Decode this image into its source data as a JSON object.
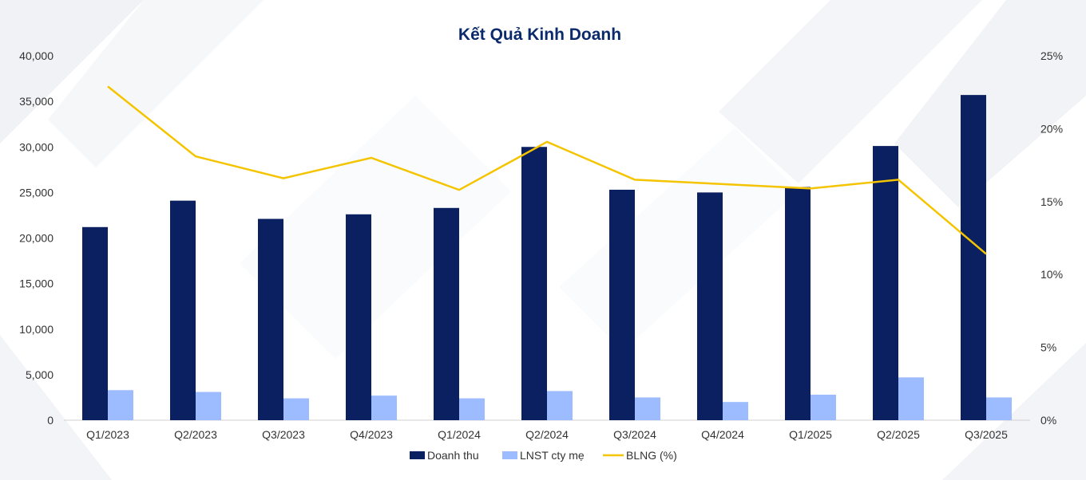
{
  "chart_data": {
    "type": "bar",
    "title": "Kết Quả Kinh Doanh",
    "categories": [
      "Q1/2023",
      "Q2/2023",
      "Q3/2023",
      "Q4/2023",
      "Q1/2024",
      "Q2/2024",
      "Q3/2024",
      "Q4/2024",
      "Q1/2025",
      "Q2/2025",
      "Q3/2025"
    ],
    "series": [
      {
        "name": "Doanh thu",
        "kind": "bar",
        "axis": "left",
        "color": "#0b2060",
        "values": [
          21200,
          24100,
          22100,
          22600,
          23300,
          30000,
          25300,
          25000,
          25600,
          30100,
          35700
        ]
      },
      {
        "name": "LNST cty mẹ",
        "kind": "bar",
        "axis": "left",
        "color": "#9dbcff",
        "values": [
          3300,
          3100,
          2400,
          2700,
          2400,
          3200,
          2500,
          2000,
          2800,
          4700,
          2500
        ]
      },
      {
        "name": "BLNG (%)",
        "kind": "line",
        "axis": "right",
        "color": "#f5c400",
        "values": [
          22.9,
          18.1,
          16.6,
          18.0,
          15.8,
          19.1,
          16.5,
          16.2,
          15.9,
          16.5,
          11.4
        ]
      }
    ],
    "ylim_left": [
      0,
      40000
    ],
    "ylim_right": [
      0,
      25
    ],
    "yticks_left": [
      "0",
      "5,000",
      "10,000",
      "15,000",
      "20,000",
      "25,000",
      "30,000",
      "35,000",
      "40,000"
    ],
    "yticks_right": [
      "0%",
      "5%",
      "10%",
      "15%",
      "20%",
      "25%"
    ],
    "grid": false,
    "legend_position": "bottom"
  }
}
